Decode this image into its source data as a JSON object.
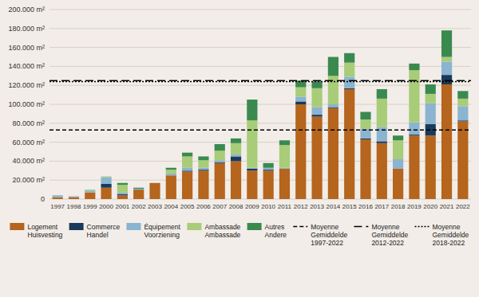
{
  "chart_data": {
    "type": "bar",
    "stacked": true,
    "grid": true,
    "legend": "bottom",
    "categories": [
      "1997",
      "1998",
      "1999",
      "2000",
      "2001",
      "2002",
      "2003",
      "2004",
      "2005",
      "2006",
      "2007",
      "2008",
      "2009",
      "2010",
      "2011",
      "2012",
      "2013",
      "2014",
      "2015",
      "2016",
      "2017",
      "2018",
      "2019",
      "2020",
      "2021",
      "2022"
    ],
    "series": [
      {
        "name": "Logement\nHuisvesting",
        "color": "#b5651d",
        "values": [
          2000,
          2000,
          7000,
          12000,
          4000,
          10000,
          17000,
          25000,
          29000,
          30000,
          38000,
          40000,
          30000,
          30000,
          32000,
          100000,
          87000,
          96000,
          116000,
          63000,
          59000,
          32000,
          67000,
          67000,
          121000,
          82000
        ]
      },
      {
        "name": "Commerce\nHandel",
        "color": "#1a3a5c",
        "values": [
          0,
          0,
          0,
          4000,
          1000,
          0,
          0,
          0,
          1000,
          1000,
          1000,
          5000,
          2000,
          1000,
          0,
          3000,
          2000,
          1000,
          1000,
          1000,
          2000,
          0,
          1000,
          12000,
          10000,
          1000
        ]
      },
      {
        "name": "Équipement\nVoorziening",
        "color": "#8ab4d0",
        "values": [
          2000,
          1000,
          2000,
          7000,
          2000,
          1000,
          0,
          2000,
          3000,
          2000,
          2000,
          2000,
          1000,
          2000,
          1000,
          5000,
          8000,
          3000,
          12000,
          10000,
          15000,
          10000,
          13000,
          22000,
          14000,
          15000
        ]
      },
      {
        "name": "Ambassade\nAmbassade",
        "color": "#a8cc78",
        "values": [
          0,
          0,
          1000,
          1000,
          8000,
          0,
          0,
          4000,
          12000,
          8000,
          10000,
          12000,
          50000,
          0,
          24000,
          10000,
          20000,
          30000,
          15000,
          10000,
          30000,
          20000,
          55000,
          10000,
          5000,
          8000
        ]
      },
      {
        "name": "Autres\nAndere",
        "color": "#3a8a50",
        "values": [
          0,
          0,
          0,
          0,
          2000,
          1000,
          0,
          2000,
          4000,
          4000,
          7000,
          5000,
          22000,
          5000,
          5000,
          7000,
          7000,
          20000,
          10000,
          8000,
          10000,
          5000,
          7000,
          10000,
          28000,
          8000
        ]
      }
    ],
    "reference_lines": [
      {
        "name": "Moyenne\nGemiddelde\n1997-2022",
        "value": 73000,
        "color": "#000000",
        "line_style": "dashed"
      },
      {
        "name": "Moyenne\nGemiddelde\n2012-2022",
        "value": 125000,
        "color": "#000000",
        "line_style": "long-dashed"
      },
      {
        "name": "Moyenne\nGemiddelde\n2018-2022",
        "value": 124000,
        "color": "#000000",
        "line_style": "dotted"
      }
    ],
    "ylim": [
      0,
      200000
    ],
    "yticks": [
      0,
      {
        "value": 20000,
        "label": "20.000 m²"
      },
      {
        "value": 40000,
        "label": "40.000 m²"
      },
      {
        "value": 60000,
        "label": "60.000 m²"
      },
      {
        "value": 80000,
        "label": "80.000 m²"
      },
      {
        "value": 100000,
        "label": "100.000 m²"
      },
      {
        "value": 120000,
        "label": "120.000 m²"
      },
      {
        "value": 140000,
        "label": "140.000 m²"
      },
      {
        "value": 160000,
        "label": "160.000 m²"
      },
      {
        "value": 180000,
        "label": "180.000 m²"
      },
      {
        "value": 200000,
        "label": "200.000 m²"
      }
    ]
  }
}
